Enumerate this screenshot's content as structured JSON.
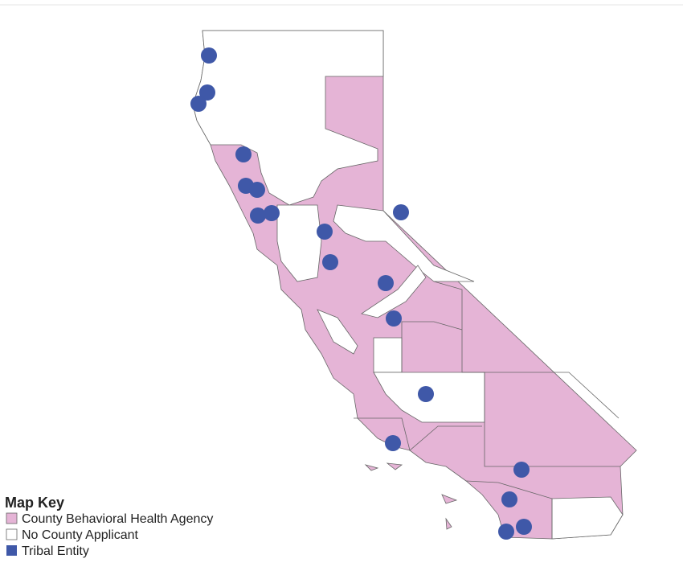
{
  "legend": {
    "title": "Map Key",
    "items": [
      {
        "label": "County Behavioral Health Agency"
      },
      {
        "label": "No County Applicant"
      },
      {
        "label": "Tribal Entity"
      }
    ]
  }
}
